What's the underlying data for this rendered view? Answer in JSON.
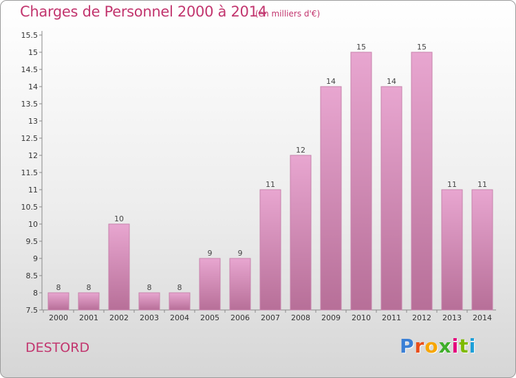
{
  "header": {
    "title": "Charges de Personnel 2000 à 2014",
    "subtitle": "(en milliers d'€)"
  },
  "footer": {
    "place": "DESTORD",
    "brand": "Proxiti",
    "brand_colors": [
      "#3a7fd5",
      "#e94e1b",
      "#f7a600",
      "#3fae2a",
      "#e4007c",
      "#7fba00",
      "#1d9fd8"
    ]
  },
  "colors": {
    "title": "#c2356e",
    "bar_top": "#e8a6d0",
    "bar_bottom": "#b76f98",
    "bar_edge": "#c783ac"
  },
  "chart_data": {
    "type": "bar",
    "title": "Charges de Personnel 2000 à 2014",
    "subtitle": "(en milliers d'€)",
    "xlabel": "",
    "ylabel": "",
    "categories": [
      "2000",
      "2001",
      "2002",
      "2003",
      "2004",
      "2005",
      "2006",
      "2007",
      "2008",
      "2009",
      "2010",
      "2011",
      "2012",
      "2013",
      "2014"
    ],
    "values": [
      8,
      8,
      10,
      8,
      8,
      9,
      9,
      11,
      12,
      14,
      15,
      14,
      15,
      11,
      11
    ],
    "ylim": [
      7.5,
      15.5
    ],
    "yticks": [
      "7.5",
      "8",
      "8.5",
      "9",
      "9.5",
      "10",
      "10.5",
      "11",
      "11.5",
      "12",
      "12.5",
      "13",
      "13.5",
      "14",
      "14.5",
      "15",
      "15.5"
    ],
    "grid": false,
    "legend": "none"
  }
}
